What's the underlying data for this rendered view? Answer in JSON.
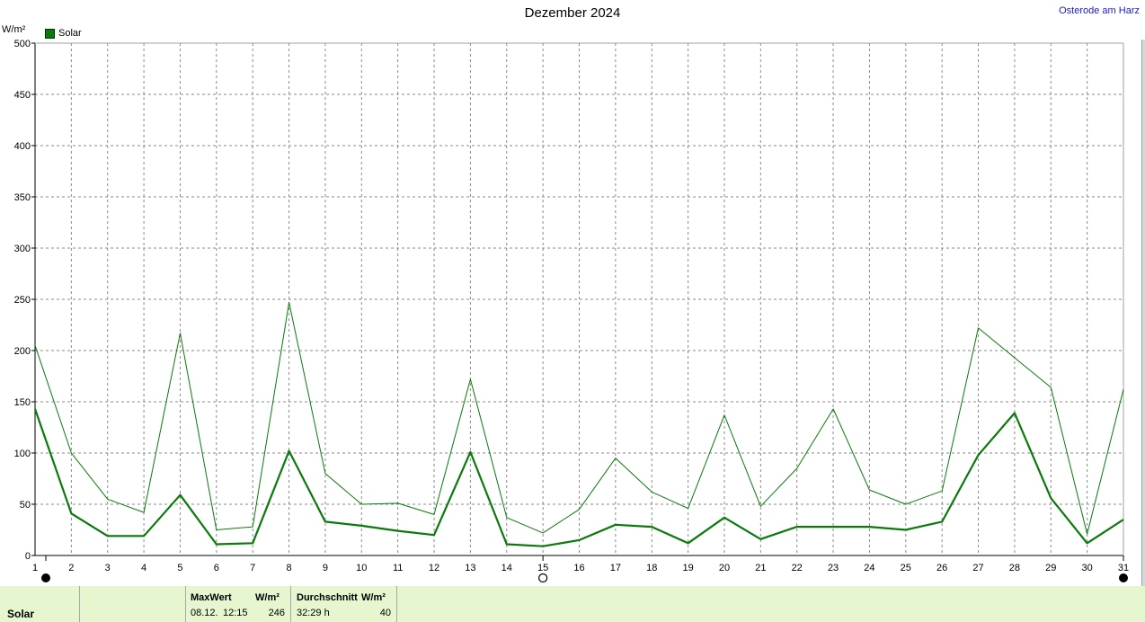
{
  "title": "Dezember 2024",
  "station": "Osterode am Harz",
  "unit": "W/m²",
  "legend": {
    "label": "Solar",
    "color": "#0a7a0a"
  },
  "chart_data": {
    "type": "line",
    "x": [
      1,
      2,
      3,
      4,
      5,
      6,
      7,
      8,
      9,
      10,
      11,
      12,
      13,
      14,
      15,
      16,
      17,
      18,
      19,
      20,
      21,
      22,
      23,
      24,
      25,
      26,
      27,
      28,
      29,
      30,
      31
    ],
    "series": [
      {
        "role": "max",
        "values": [
          205,
          100,
          55,
          42,
          217,
          25,
          28,
          247,
          80,
          50,
          51,
          40,
          172,
          37,
          22,
          45,
          95,
          62,
          46,
          137,
          48,
          85,
          143,
          64,
          50,
          63,
          222,
          193,
          164,
          21,
          162
        ]
      },
      {
        "role": "average",
        "values": [
          143,
          41,
          19,
          19,
          59,
          11,
          12,
          102,
          33,
          29,
          24,
          20,
          101,
          11,
          9,
          15,
          30,
          28,
          12,
          37,
          16,
          28,
          28,
          28,
          25,
          33,
          98,
          139,
          56,
          12,
          35
        ]
      }
    ],
    "ylim": [
      0,
      500
    ],
    "yticks": [
      0,
      50,
      100,
      150,
      200,
      250,
      300,
      350,
      400,
      450,
      500
    ],
    "grid": true,
    "legend_position": "top-left",
    "moon_markers": [
      {
        "day": 1,
        "phase": "new"
      },
      {
        "day": 15,
        "phase": "full"
      },
      {
        "day": 31,
        "phase": "new"
      }
    ]
  },
  "footer": {
    "row_label": "Solar",
    "max": {
      "header": "MaxWert",
      "unit": "W/m²",
      "date": "08.12.",
      "time": "12:15",
      "value": "246"
    },
    "avg": {
      "header": "Durchschnitt",
      "unit": "W/m²",
      "duration": "32:29 h",
      "value": "40"
    }
  }
}
